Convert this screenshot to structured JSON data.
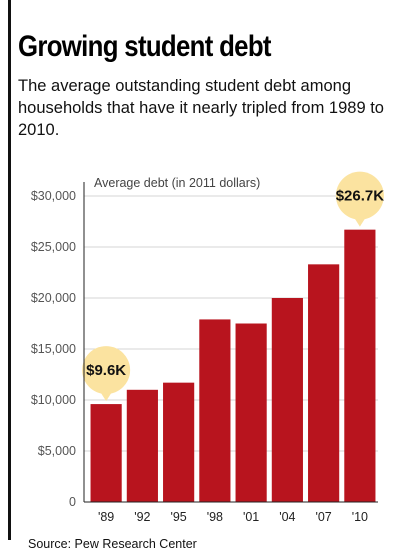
{
  "title": "Growing student debt",
  "subtitle": "The average outstanding student debt among households that have it nearly tripled from 1989 to 2010.",
  "source": "Source: Pew Research Center",
  "colors": {
    "bar": "#b8141e",
    "callout": "#fbe3a0",
    "grid": "#d6d6d6"
  },
  "chart_data": {
    "type": "bar",
    "ylabel": "Average debt (in 2011 dollars)",
    "categories": [
      "'89",
      "'92",
      "'95",
      "'98",
      "'01",
      "'04",
      "'07",
      "'10"
    ],
    "values": [
      9600,
      11000,
      11700,
      17900,
      17500,
      20000,
      23300,
      26700
    ],
    "ylim": [
      0,
      30000
    ],
    "yticks": [
      0,
      5000,
      10000,
      15000,
      20000,
      25000,
      30000
    ],
    "ytick_labels": [
      "0",
      "$5,000",
      "$10,000",
      "$15,000",
      "$20,000",
      "$25,000",
      "$30,000"
    ],
    "grid": true,
    "annotations": [
      {
        "category_index": 0,
        "text": "$9.6K"
      },
      {
        "category_index": 7,
        "text": "$26.7K"
      }
    ]
  }
}
